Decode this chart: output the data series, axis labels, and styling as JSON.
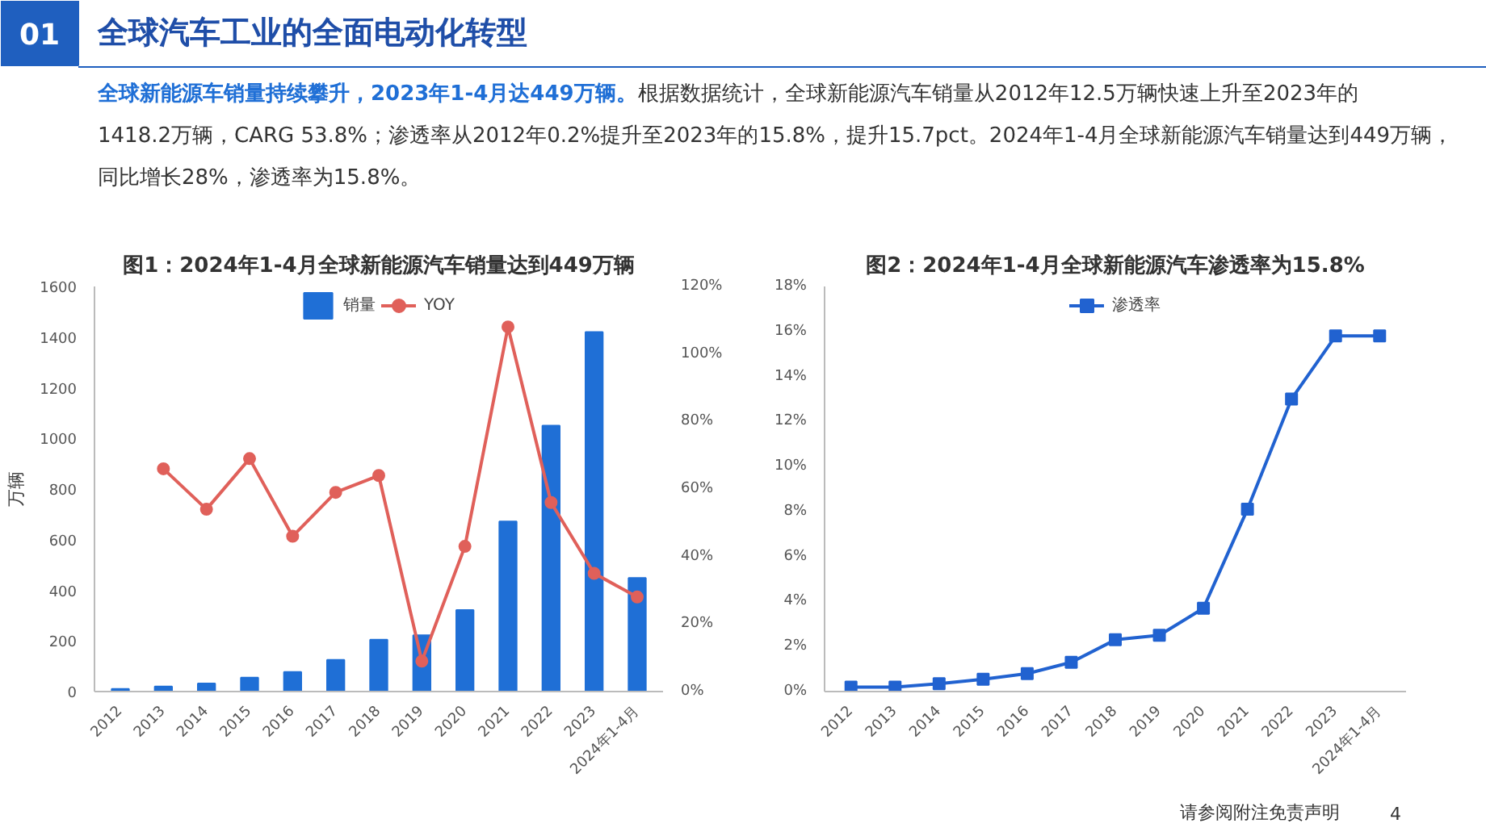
{
  "chart_data": [
    {
      "type": "other",
      "title": "全球汽车工业的全面电动化转型",
      "annotations": [
        "01",
        "全球新能源车销量持续攀升，2023年1-4月达449万辆。",
        "根据数据统计，全球新能源汽车销量从2012年12.5万辆快速上升至2023年的1418.2万辆，CARG 53.8%；渗透率从2012年0.2%提升至2023年的15.8%，提升15.7pct。2024年1-4月全球新能源汽车销量达到449万辆，同比增长28%，渗透率为15.8%。",
        "请参阅附注免责声明",
        "4"
      ]
    },
    {
      "type": "bar",
      "title": "图1：2024年1-4月全球新能源汽车销量达到449万辆",
      "ylabel": "万辆",
      "categories": [
        "2012",
        "2013",
        "2014",
        "2015",
        "2016",
        "2017",
        "2018",
        "2019",
        "2020",
        "2021",
        "2022",
        "2023",
        "2024年1-4月"
      ],
      "series": [
        {
          "name": "销量",
          "color": "#1f6fd6",
          "values": [
            10,
            20,
            32,
            55,
            77,
            125,
            205,
            222,
            322,
            672,
            1050,
            1420,
            449
          ]
        },
        {
          "name": "YOY",
          "type": "line",
          "axis": "y2",
          "color": "#e0605a",
          "values": [
            null,
            66,
            54,
            69,
            46,
            59,
            64,
            9,
            43,
            108,
            56,
            35,
            28
          ]
        }
      ],
      "marker": "circle",
      "ylim": [
        0,
        1600
      ],
      "yticks": [
        0,
        200,
        400,
        600,
        800,
        1000,
        1200,
        1400,
        1600
      ],
      "y2lim": [
        0,
        120
      ],
      "y2ticks": [
        {
          "value": 0,
          "label": "0%"
        },
        {
          "value": 20,
          "label": "20%"
        },
        {
          "value": 40,
          "label": "40%"
        },
        {
          "value": 60,
          "label": "60%"
        },
        {
          "value": 80,
          "label": "80%"
        },
        {
          "value": 100,
          "label": "100%"
        },
        {
          "value": 120,
          "label": "120%"
        }
      ],
      "legend": "top",
      "grid": false
    },
    {
      "type": "line",
      "title": "图2：2024年1-4月全球新能源汽车渗透率为15.8%",
      "categories": [
        "2012",
        "2013",
        "2014",
        "2015",
        "2016",
        "2017",
        "2018",
        "2019",
        "2020",
        "2021",
        "2022",
        "2023",
        "2024年1-4月"
      ],
      "series": [
        {
          "name": "渗透率",
          "color": "#2162d0",
          "values": [
            0.2,
            0.2,
            0.35,
            0.55,
            0.8,
            1.3,
            2.3,
            2.5,
            3.7,
            8.1,
            13,
            15.8,
            15.8
          ]
        }
      ],
      "marker": "square",
      "ylim": [
        0,
        18
      ],
      "yticks": [
        {
          "value": 0,
          "label": "0%"
        },
        {
          "value": 2,
          "label": "2%"
        },
        {
          "value": 4,
          "label": "4%"
        },
        {
          "value": 6,
          "label": "6%"
        },
        {
          "value": 8,
          "label": "8%"
        },
        {
          "value": 10,
          "label": "10%"
        },
        {
          "value": 12,
          "label": "12%"
        },
        {
          "value": 14,
          "label": "14%"
        },
        {
          "value": 16,
          "label": "16%"
        },
        {
          "value": 18,
          "label": "18%"
        }
      ],
      "legend": "top",
      "grid": false
    }
  ]
}
